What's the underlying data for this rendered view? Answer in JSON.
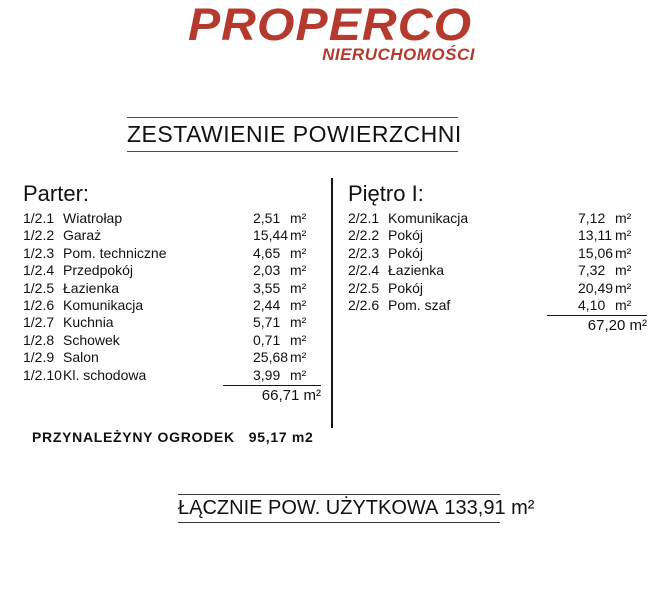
{
  "logo": {
    "brand": "PROPERCO",
    "subtitle": "NIERUCHOMOŚCI",
    "brand_color": "#b5392c"
  },
  "title": "ZESTAWIENIE POWIERZCHNI",
  "sections": [
    {
      "heading": "Parter:",
      "rows": [
        {
          "code": "1/2.1",
          "name": "Wiatrołap",
          "value": "2,51",
          "unit": "m²"
        },
        {
          "code": "1/2.2",
          "name": "Garaż",
          "value": "15,44",
          "unit": "m²"
        },
        {
          "code": "1/2.3",
          "name": "Pom. techniczne",
          "value": "4,65",
          "unit": "m²"
        },
        {
          "code": "1/2.4",
          "name": "Przedpokój",
          "value": "2,03",
          "unit": "m²"
        },
        {
          "code": "1/2.5",
          "name": "Łazienka",
          "value": "3,55",
          "unit": "m²"
        },
        {
          "code": "1/2.6",
          "name": "Komunikacja",
          "value": "2,44",
          "unit": "m²"
        },
        {
          "code": "1/2.7",
          "name": "Kuchnia",
          "value": "5,71",
          "unit": "m²"
        },
        {
          "code": "1/2.8",
          "name": "Schowek",
          "value": "0,71",
          "unit": "m²"
        },
        {
          "code": "1/2.9",
          "name": "Salon",
          "value": "25,68",
          "unit": "m²"
        },
        {
          "code": "1/2.10",
          "name": "Kl. schodowa",
          "value": "3,99",
          "unit": "m²"
        }
      ],
      "total": "66,71 m²"
    },
    {
      "heading": "Piętro I:",
      "rows": [
        {
          "code": "2/2.1",
          "name": "Komunikacja",
          "value": "7,12",
          "unit": "m²"
        },
        {
          "code": "2/2.2",
          "name": "Pokój",
          "value": "13,11",
          "unit": "m²"
        },
        {
          "code": "2/2.3",
          "name": "Pokój",
          "value": "15,06",
          "unit": "m²"
        },
        {
          "code": "2/2.4",
          "name": "Łazienka",
          "value": "7,32",
          "unit": "m²"
        },
        {
          "code": "2/2.5",
          "name": "Pokój",
          "value": "20,49",
          "unit": "m²"
        },
        {
          "code": "2/2.6",
          "name": "Pom. szaf",
          "value": "4,10",
          "unit": "m²"
        }
      ],
      "total": "67,20 m²"
    }
  ],
  "garden": {
    "label": "PRZYNALEŻYNY OGRODEK",
    "value": "95,17 m2"
  },
  "grand_total": {
    "label": "ŁĄCZNIE POW. UŻYTKOWA",
    "value": "133,91 m²"
  }
}
